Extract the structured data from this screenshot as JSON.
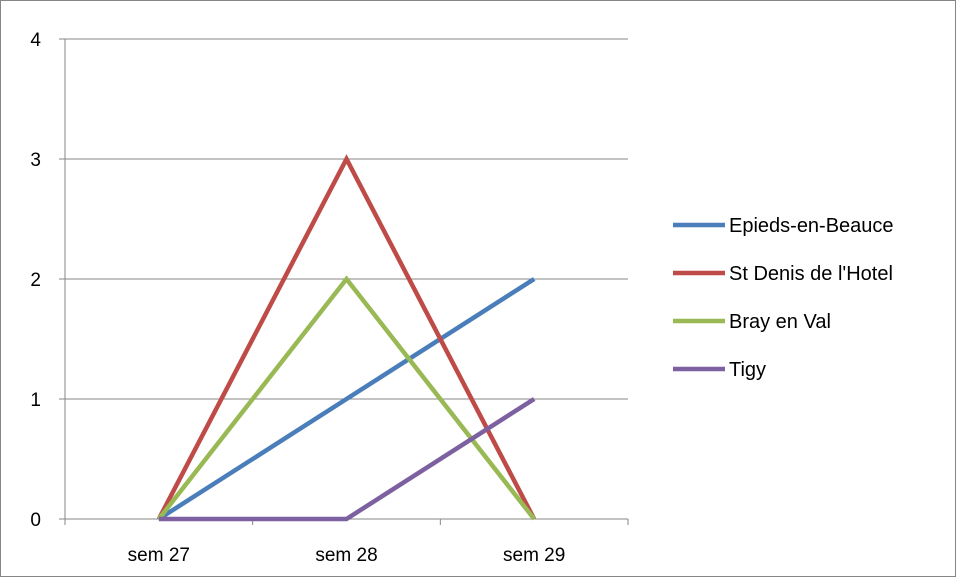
{
  "chart_data": {
    "type": "line",
    "categories": [
      "sem 27",
      "sem 28",
      "sem 29"
    ],
    "ylim": [
      0,
      4
    ],
    "yticks": [
      "0",
      "1",
      "2",
      "3",
      "4"
    ],
    "grid": true,
    "legend_position": "right",
    "series": [
      {
        "name": "Epieds-en-Beauce",
        "values": [
          0,
          1,
          2
        ],
        "color": "#4a7ebb"
      },
      {
        "name": "St Denis de l'Hotel",
        "values": [
          0,
          3,
          0
        ],
        "color": "#be4b48"
      },
      {
        "name": "Bray en Val",
        "values": [
          0,
          2,
          0
        ],
        "color": "#98b954"
      },
      {
        "name": "Tigy",
        "values": [
          0,
          0,
          1
        ],
        "color": "#7d60a0"
      }
    ]
  }
}
